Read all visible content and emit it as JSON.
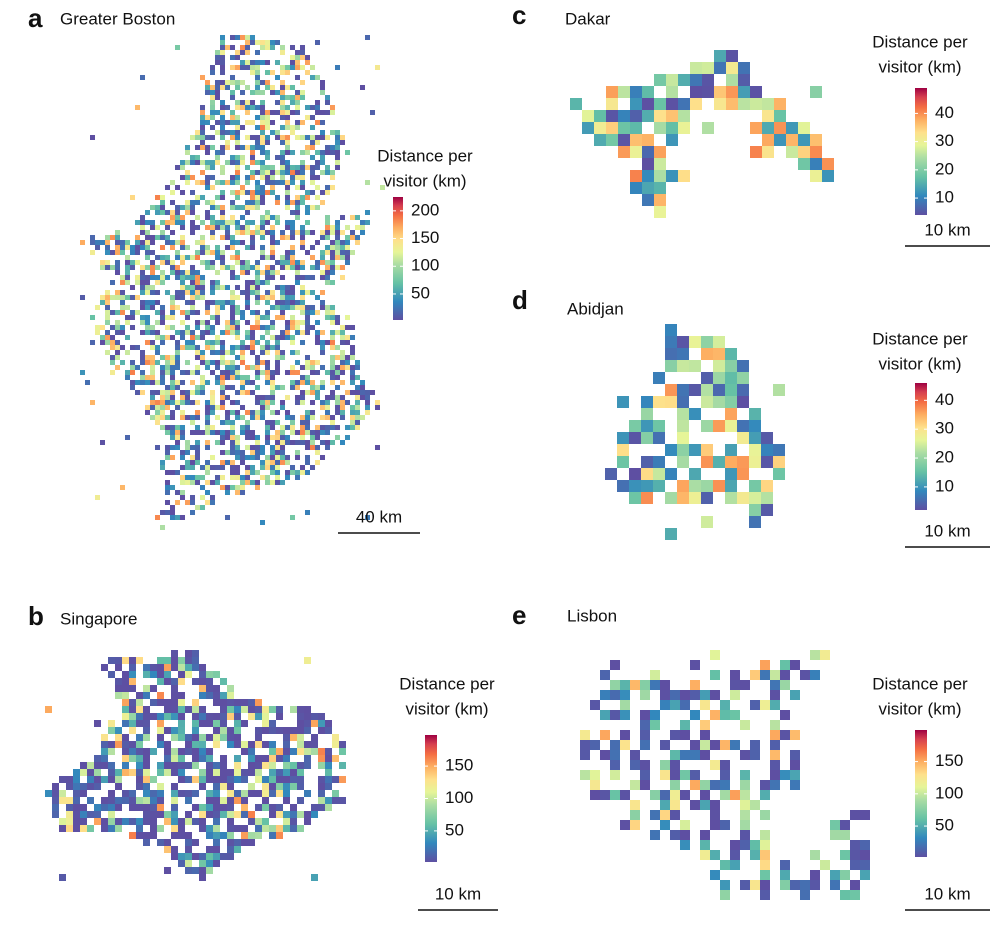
{
  "panels": [
    {
      "letter": "a",
      "title": "Greater Boston",
      "legend": {
        "title": [
          "Distance per",
          "visitor (km)"
        ],
        "ticks": [
          50,
          100,
          150,
          200
        ],
        "lim": [
          3,
          225
        ]
      },
      "scale_bar": "40 km"
    },
    {
      "letter": "b",
      "title": "Singapore",
      "legend": {
        "title": [
          "Distance per",
          "visitor (km)"
        ],
        "ticks": [
          50,
          100,
          150
        ],
        "lim": [
          2,
          198
        ]
      },
      "scale_bar": "10 km"
    },
    {
      "letter": "c",
      "title": "Dakar",
      "legend": {
        "title": [
          "Distance per",
          "visitor (km)"
        ],
        "ticks": [
          10,
          20,
          30,
          40
        ],
        "lim": [
          4,
          49
        ]
      },
      "scale_bar": "10 km"
    },
    {
      "letter": "d",
      "title": "Abidjan",
      "legend": {
        "title": [
          "Distance per",
          "visitor (km)"
        ],
        "ticks": [
          10,
          20,
          30,
          40
        ],
        "lim": [
          2,
          46
        ]
      },
      "scale_bar": "10 km"
    },
    {
      "letter": "e",
      "title": "Lisbon",
      "legend": {
        "title": [
          "Distance per",
          "visitor (km)"
        ],
        "ticks": [
          50,
          100,
          150
        ],
        "lim": [
          2,
          199
        ]
      },
      "scale_bar": "10 km"
    }
  ]
}
